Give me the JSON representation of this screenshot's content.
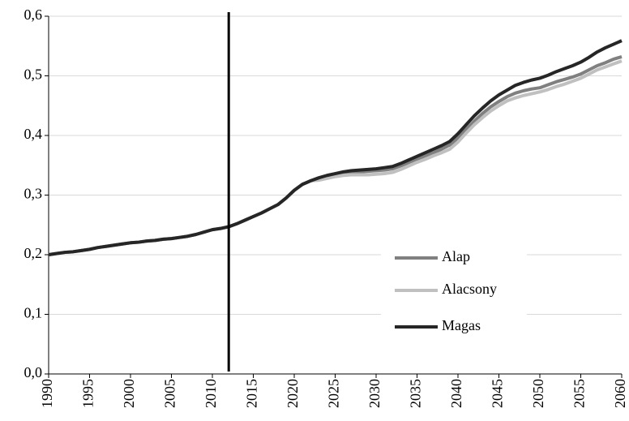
{
  "chart_data": {
    "type": "line",
    "x": [
      1990,
      1991,
      1992,
      1993,
      1994,
      1995,
      1996,
      1997,
      1998,
      1999,
      2000,
      2001,
      2002,
      2003,
      2004,
      2005,
      2006,
      2007,
      2008,
      2009,
      2010,
      2011,
      2012,
      2013,
      2014,
      2015,
      2016,
      2017,
      2018,
      2019,
      2020,
      2021,
      2022,
      2023,
      2024,
      2025,
      2026,
      2027,
      2028,
      2029,
      2030,
      2031,
      2032,
      2033,
      2034,
      2035,
      2036,
      2037,
      2038,
      2039,
      2040,
      2041,
      2042,
      2043,
      2044,
      2045,
      2046,
      2047,
      2048,
      2049,
      2050,
      2051,
      2052,
      2053,
      2054,
      2055,
      2056,
      2057,
      2058,
      2059,
      2060
    ],
    "series": [
      {
        "name": "Alap",
        "color": "#808080",
        "values": [
          0.2,
          0.202,
          0.204,
          0.205,
          0.207,
          0.209,
          0.212,
          0.214,
          0.216,
          0.218,
          0.22,
          0.221,
          0.223,
          0.224,
          0.226,
          0.227,
          0.229,
          0.231,
          0.234,
          0.238,
          0.242,
          0.244,
          0.247,
          0.252,
          0.258,
          0.264,
          0.27,
          0.277,
          0.284,
          0.295,
          0.308,
          0.318,
          0.324,
          0.327,
          0.331,
          0.334,
          0.337,
          0.338,
          0.339,
          0.34,
          0.341,
          0.342,
          0.344,
          0.349,
          0.354,
          0.36,
          0.366,
          0.371,
          0.377,
          0.384,
          0.396,
          0.41,
          0.424,
          0.437,
          0.448,
          0.457,
          0.465,
          0.471,
          0.475,
          0.478,
          0.48,
          0.485,
          0.49,
          0.494,
          0.498,
          0.503,
          0.51,
          0.517,
          0.522,
          0.528,
          0.532
        ]
      },
      {
        "name": "Alacsony",
        "color": "#c0c0c0",
        "values": [
          0.2,
          0.202,
          0.204,
          0.205,
          0.207,
          0.209,
          0.212,
          0.214,
          0.216,
          0.218,
          0.22,
          0.221,
          0.223,
          0.224,
          0.226,
          0.227,
          0.229,
          0.231,
          0.234,
          0.238,
          0.242,
          0.244,
          0.247,
          0.252,
          0.258,
          0.264,
          0.27,
          0.277,
          0.284,
          0.295,
          0.308,
          0.318,
          0.324,
          0.325,
          0.328,
          0.331,
          0.333,
          0.334,
          0.334,
          0.334,
          0.335,
          0.336,
          0.338,
          0.343,
          0.349,
          0.355,
          0.36,
          0.366,
          0.371,
          0.377,
          0.389,
          0.404,
          0.418,
          0.43,
          0.441,
          0.45,
          0.458,
          0.463,
          0.467,
          0.47,
          0.473,
          0.477,
          0.482,
          0.486,
          0.491,
          0.496,
          0.503,
          0.51,
          0.515,
          0.52,
          0.525
        ]
      },
      {
        "name": "Magas",
        "color": "#262626",
        "values": [
          0.2,
          0.202,
          0.204,
          0.205,
          0.207,
          0.209,
          0.212,
          0.214,
          0.216,
          0.218,
          0.22,
          0.221,
          0.223,
          0.224,
          0.226,
          0.227,
          0.229,
          0.231,
          0.234,
          0.238,
          0.242,
          0.244,
          0.247,
          0.252,
          0.258,
          0.264,
          0.27,
          0.277,
          0.284,
          0.295,
          0.308,
          0.318,
          0.324,
          0.329,
          0.333,
          0.336,
          0.339,
          0.341,
          0.342,
          0.343,
          0.344,
          0.346,
          0.348,
          0.353,
          0.359,
          0.365,
          0.371,
          0.377,
          0.383,
          0.39,
          0.403,
          0.418,
          0.433,
          0.446,
          0.458,
          0.468,
          0.476,
          0.484,
          0.489,
          0.493,
          0.496,
          0.501,
          0.507,
          0.512,
          0.517,
          0.523,
          0.531,
          0.54,
          0.547,
          0.553,
          0.559
        ]
      }
    ],
    "xlim": [
      1990,
      2060
    ],
    "xticks": [
      1990,
      1995,
      2000,
      2005,
      2010,
      2015,
      2020,
      2025,
      2030,
      2035,
      2040,
      2045,
      2050,
      2055,
      2060
    ],
    "ylim": [
      0,
      0.6
    ],
    "yticks": [
      {
        "value": 0,
        "label": "0,0"
      },
      {
        "value": 0.1,
        "label": "0,1"
      },
      {
        "value": 0.2,
        "label": "0,2"
      },
      {
        "value": 0.3,
        "label": "0,3"
      },
      {
        "value": 0.4,
        "label": "0,4"
      },
      {
        "value": 0.5,
        "label": "0,5"
      },
      {
        "value": 0.6,
        "label": "0,6"
      }
    ],
    "grid": true,
    "reference_line_x": 2012,
    "legend": "lower right"
  }
}
